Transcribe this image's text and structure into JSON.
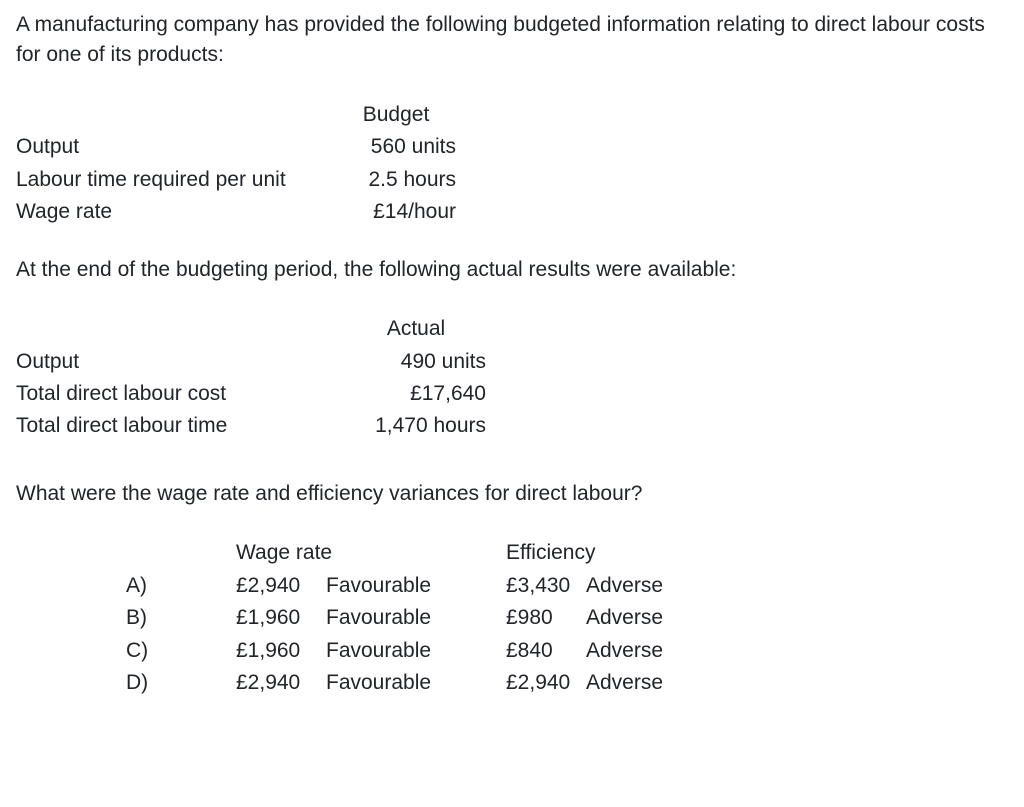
{
  "colors": {
    "text": "#212529",
    "background": "#ffffff"
  },
  "typography": {
    "font_family": "Arial, Helvetica, sans-serif",
    "base_fontsize_pt": 16,
    "line_height": 1.45
  },
  "intro": "A manufacturing company has provided the following budgeted information relating to direct labour costs for one of its products:",
  "budget": {
    "header": "Budget",
    "rows": [
      {
        "label": "Output",
        "value": "560 units"
      },
      {
        "label": "Labour time required per unit",
        "value": "2.5 hours"
      },
      {
        "label": "Wage rate",
        "value": "£14/hour"
      }
    ]
  },
  "mid_text": "At the end of the budgeting period, the following actual results were available:",
  "actual": {
    "header": "Actual",
    "rows": [
      {
        "label": "Output",
        "value": "490 units"
      },
      {
        "label": "Total direct labour cost",
        "value": "£17,640"
      },
      {
        "label": "Total direct labour time",
        "value": "1,470 hours"
      }
    ]
  },
  "question": "What were the wage rate and efficiency variances for direct labour?",
  "answers": {
    "headers": {
      "wage": "Wage rate",
      "efficiency": "Efficiency"
    },
    "options": [
      {
        "label": "A)",
        "wage_amount": "£2,940",
        "wage_dir": "Favourable",
        "eff_amount": "£3,430",
        "eff_dir": "Adverse"
      },
      {
        "label": "B)",
        "wage_amount": "£1,960",
        "wage_dir": "Favourable",
        "eff_amount": "£980",
        "eff_dir": "Adverse"
      },
      {
        "label": "C)",
        "wage_amount": "£1,960",
        "wage_dir": "Favourable",
        "eff_amount": "£840",
        "eff_dir": "Adverse"
      },
      {
        "label": "D)",
        "wage_amount": "£2,940",
        "wage_dir": "Favourable",
        "eff_amount": "£2,940",
        "eff_dir": "Adverse"
      }
    ]
  }
}
